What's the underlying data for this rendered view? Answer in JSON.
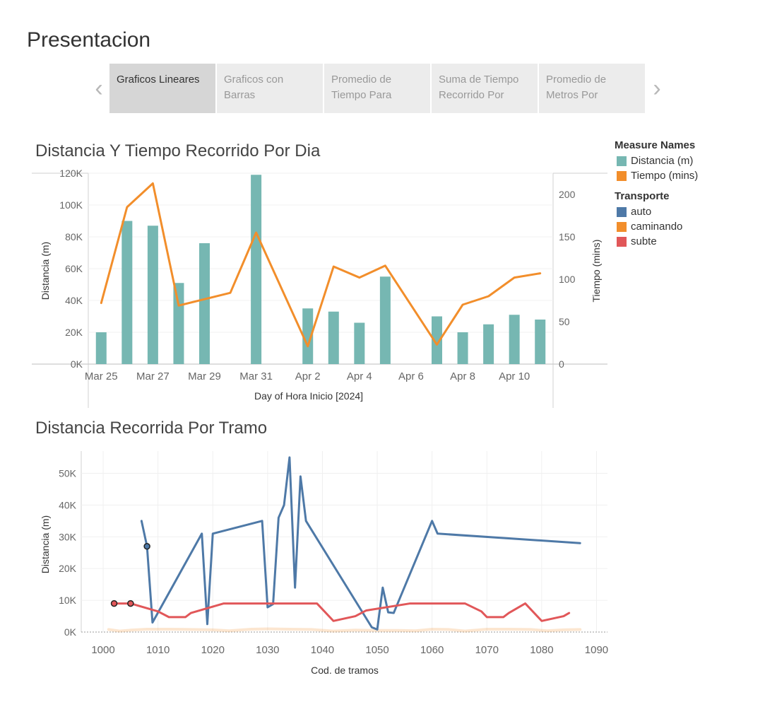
{
  "page": {
    "title": "Presentacion"
  },
  "tabs": {
    "items": [
      {
        "label": "Graficos Lineares",
        "active": true
      },
      {
        "label": "Graficos con Barras",
        "active": false
      },
      {
        "label": "Promedio de Tiempo Para",
        "active": false
      },
      {
        "label": "Suma de Tiempo Recorrido Por",
        "active": false
      },
      {
        "label": "Promedio de Metros Por",
        "active": false
      }
    ],
    "prev_icon": "chevron-left-icon",
    "next_icon": "chevron-right-icon"
  },
  "legend": {
    "measure_title": "Measure Names",
    "measures": [
      {
        "label": "Distancia (m)",
        "color": "#76b7b2"
      },
      {
        "label": "Tiempo (mins)",
        "color": "#f28e2b"
      }
    ],
    "transport_title": "Transporte",
    "transports": [
      {
        "label": "auto",
        "color": "#4e79a7"
      },
      {
        "label": "caminando",
        "color": "#f28e2b"
      },
      {
        "label": "subte",
        "color": "#e15759"
      }
    ]
  },
  "chart_data": [
    {
      "type": "bar",
      "title": "Distancia Y Tiempo Recorrido Por Dia",
      "xlabel": "Day of Hora Inicio [2024]",
      "ylabel": "Distancia (m)",
      "y2label": "Tiempo (mins)",
      "x_ticks": [
        "Mar 25",
        "Mar 27",
        "Mar 29",
        "Mar 31",
        "Apr 2",
        "Apr 4",
        "Apr 6",
        "Apr 8",
        "Apr 10"
      ],
      "y_ticks": [
        "0K",
        "20K",
        "40K",
        "60K",
        "80K",
        "100K",
        "120K"
      ],
      "y2_ticks": [
        "0",
        "50",
        "100",
        "150",
        "200"
      ],
      "ylim": [
        0,
        120000
      ],
      "y2lim": [
        0,
        225
      ],
      "days": [
        "Mar 25",
        "Mar 26",
        "Mar 27",
        "Mar 28",
        "Mar 29",
        "Mar 30",
        "Mar 31",
        "Apr 1",
        "Apr 2",
        "Apr 3",
        "Apr 4",
        "Apr 5",
        "Apr 6",
        "Apr 7",
        "Apr 8",
        "Apr 9",
        "Apr 10",
        "Apr 11"
      ],
      "series": [
        {
          "name": "Distancia (m)",
          "color": "#76b7b2",
          "mark": "bar",
          "values": [
            20000,
            90000,
            87000,
            51000,
            76000,
            null,
            119000,
            null,
            35000,
            33000,
            26000,
            55000,
            null,
            30000,
            20000,
            25000,
            31000,
            28000
          ]
        },
        {
          "name": "Tiempo (mins)",
          "color": "#f28e2b",
          "mark": "line",
          "axis": "right",
          "values": [
            72,
            185,
            213,
            69,
            null,
            84,
            155,
            null,
            21,
            115,
            102,
            116,
            null,
            23,
            70,
            80,
            102,
            107
          ]
        }
      ],
      "grid": true
    },
    {
      "type": "line",
      "title": "Distancia Recorrida Por Tramo",
      "xlabel": "Cod. de tramos",
      "ylabel": "Distancia (m)",
      "x_ticks": [
        "1000",
        "1010",
        "1020",
        "1030",
        "1040",
        "1050",
        "1060",
        "1070",
        "1080",
        "1090"
      ],
      "y_ticks": [
        "0K",
        "10K",
        "20K",
        "30K",
        "40K",
        "50K"
      ],
      "xlim": [
        996,
        1092
      ],
      "ylim": [
        0,
        57000
      ],
      "grid": true,
      "series": [
        {
          "name": "auto",
          "color": "#4e79a7",
          "points": [
            [
              1007,
              35000
            ],
            [
              1008,
              27000
            ],
            [
              1009,
              3000
            ],
            [
              1018,
              31000
            ],
            [
              1019,
              2500
            ],
            [
              1020,
              31000
            ],
            [
              1029,
              35000
            ],
            [
              1030,
              7800
            ],
            [
              1031,
              8800
            ],
            [
              1032,
              36000
            ],
            [
              1033,
              40000
            ],
            [
              1034,
              55000
            ],
            [
              1035,
              14000
            ],
            [
              1036,
              49000
            ],
            [
              1037,
              35000
            ],
            [
              1049,
              1500
            ],
            [
              1050,
              800
            ],
            [
              1051,
              14000
            ],
            [
              1052,
              6200
            ],
            [
              1053,
              6000
            ],
            [
              1060,
              35000
            ],
            [
              1061,
              31000
            ],
            [
              1087,
              28000
            ]
          ],
          "markers": [
            [
              1008,
              27000
            ]
          ]
        },
        {
          "name": "subte",
          "color": "#e15759",
          "points": [
            [
              1002,
              9000
            ],
            [
              1005,
              9000
            ],
            [
              1010,
              6500
            ],
            [
              1012,
              4700
            ],
            [
              1015,
              4700
            ],
            [
              1016,
              6000
            ],
            [
              1022,
              9000
            ],
            [
              1039,
              9000
            ],
            [
              1042,
              3500
            ],
            [
              1046,
              5000
            ],
            [
              1048,
              6800
            ],
            [
              1056,
              9000
            ],
            [
              1066,
              9000
            ],
            [
              1069,
              6500
            ],
            [
              1070,
              4700
            ],
            [
              1073,
              4700
            ],
            [
              1074,
              6000
            ],
            [
              1077,
              9000
            ],
            [
              1080,
              3500
            ],
            [
              1084,
              5000
            ],
            [
              1085,
              6000
            ]
          ],
          "markers": [
            [
              1002,
              9000
            ],
            [
              1005,
              9000
            ]
          ]
        },
        {
          "name": "caminando",
          "color": "#f28e2b",
          "points": [
            [
              1001,
              800
            ],
            [
              1003,
              300
            ],
            [
              1005,
              600
            ],
            [
              1008,
              900
            ],
            [
              1012,
              900
            ],
            [
              1016,
              800
            ],
            [
              1020,
              700
            ],
            [
              1023,
              400
            ],
            [
              1027,
              900
            ],
            [
              1030,
              1000
            ],
            [
              1034,
              900
            ],
            [
              1038,
              800
            ],
            [
              1042,
              300
            ],
            [
              1046,
              600
            ],
            [
              1050,
              500
            ],
            [
              1054,
              500
            ],
            [
              1057,
              400
            ],
            [
              1060,
              900
            ],
            [
              1063,
              800
            ],
            [
              1066,
              300
            ],
            [
              1070,
              900
            ],
            [
              1074,
              900
            ],
            [
              1078,
              800
            ],
            [
              1081,
              400
            ],
            [
              1084,
              700
            ],
            [
              1087,
              800
            ]
          ],
          "faded": true
        }
      ]
    }
  ]
}
